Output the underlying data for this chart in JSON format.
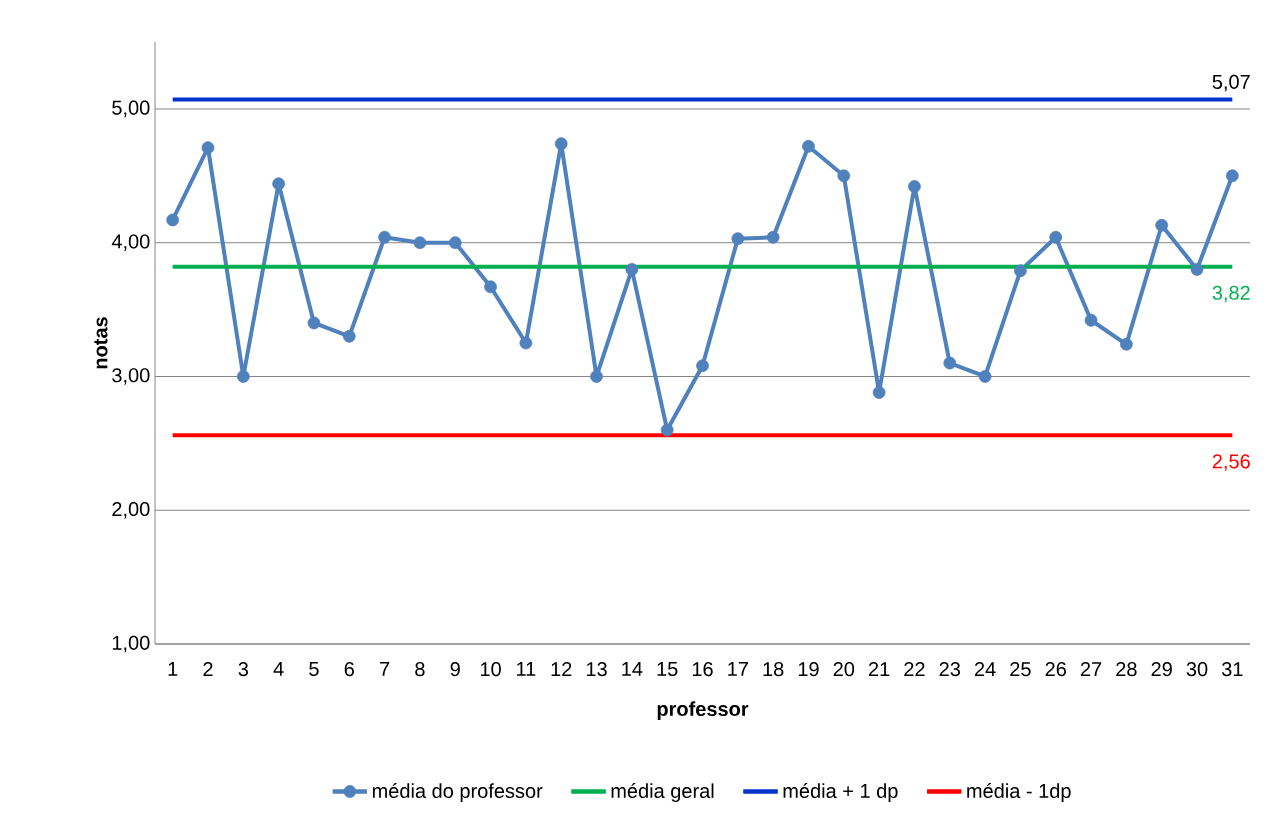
{
  "chart_data": {
    "type": "line",
    "xlabel": "professor",
    "ylabel": "notas",
    "categories": [
      "1",
      "2",
      "3",
      "4",
      "5",
      "6",
      "7",
      "8",
      "9",
      "10",
      "11",
      "12",
      "13",
      "14",
      "15",
      "16",
      "17",
      "18",
      "19",
      "20",
      "21",
      "22",
      "23",
      "24",
      "25",
      "26",
      "27",
      "28",
      "29",
      "30",
      "31"
    ],
    "series": [
      {
        "name": "média do professor",
        "color": "#4f81bd",
        "values": [
          4.17,
          4.71,
          3.0,
          4.44,
          3.4,
          3.3,
          4.04,
          4.0,
          4.0,
          3.67,
          3.25,
          4.74,
          3.0,
          3.8,
          2.6,
          3.08,
          4.03,
          4.04,
          4.72,
          4.5,
          2.88,
          4.42,
          3.1,
          3.0,
          3.79,
          4.04,
          3.42,
          3.24,
          4.13,
          3.8,
          4.5
        ]
      },
      {
        "name": "média geral",
        "color": "#00b050",
        "marker": "none",
        "values": [
          3.82,
          3.82,
          3.82,
          3.82,
          3.82,
          3.82,
          3.82,
          3.82,
          3.82,
          3.82,
          3.82,
          3.82,
          3.82,
          3.82,
          3.82,
          3.82,
          3.82,
          3.82,
          3.82,
          3.82,
          3.82,
          3.82,
          3.82,
          3.82,
          3.82,
          3.82,
          3.82,
          3.82,
          3.82,
          3.82,
          3.82
        ],
        "value_labels": [
          null,
          null,
          null,
          null,
          null,
          null,
          null,
          null,
          null,
          null,
          null,
          null,
          null,
          null,
          null,
          null,
          null,
          null,
          null,
          null,
          null,
          null,
          null,
          null,
          null,
          null,
          null,
          null,
          null,
          null,
          "3,82"
        ]
      },
      {
        "name": "média + 1 dp",
        "color": "#0033cc",
        "marker": "none",
        "values": [
          5.07,
          5.07,
          5.07,
          5.07,
          5.07,
          5.07,
          5.07,
          5.07,
          5.07,
          5.07,
          5.07,
          5.07,
          5.07,
          5.07,
          5.07,
          5.07,
          5.07,
          5.07,
          5.07,
          5.07,
          5.07,
          5.07,
          5.07,
          5.07,
          5.07,
          5.07,
          5.07,
          5.07,
          5.07,
          5.07,
          5.07
        ],
        "value_labels": [
          null,
          null,
          null,
          null,
          null,
          null,
          null,
          null,
          null,
          null,
          null,
          null,
          null,
          null,
          null,
          null,
          null,
          null,
          null,
          null,
          null,
          null,
          null,
          null,
          null,
          null,
          null,
          null,
          null,
          null,
          "5,07"
        ]
      },
      {
        "name": "média - 1dp",
        "color": "#ff0000",
        "marker": "none",
        "values": [
          2.56,
          2.56,
          2.56,
          2.56,
          2.56,
          2.56,
          2.56,
          2.56,
          2.56,
          2.56,
          2.56,
          2.56,
          2.56,
          2.56,
          2.56,
          2.56,
          2.56,
          2.56,
          2.56,
          2.56,
          2.56,
          2.56,
          2.56,
          2.56,
          2.56,
          2.56,
          2.56,
          2.56,
          2.56,
          2.56,
          2.56
        ],
        "value_labels": [
          null,
          null,
          null,
          null,
          null,
          null,
          null,
          null,
          null,
          null,
          null,
          null,
          null,
          null,
          null,
          null,
          null,
          null,
          null,
          null,
          null,
          null,
          null,
          null,
          null,
          null,
          null,
          null,
          null,
          null,
          "2,56"
        ]
      }
    ],
    "ylim": [
      1,
      5.5
    ],
    "yticks": [
      {
        "value": 1,
        "label": "1,00"
      },
      {
        "value": 2,
        "label": "2,00"
      },
      {
        "value": 3,
        "label": "3,00"
      },
      {
        "value": 4,
        "label": "4,00"
      },
      {
        "value": 5,
        "label": "5,00"
      }
    ],
    "grid": "y",
    "legend": "bottom",
    "marker": "circle",
    "line_style": "solid"
  }
}
